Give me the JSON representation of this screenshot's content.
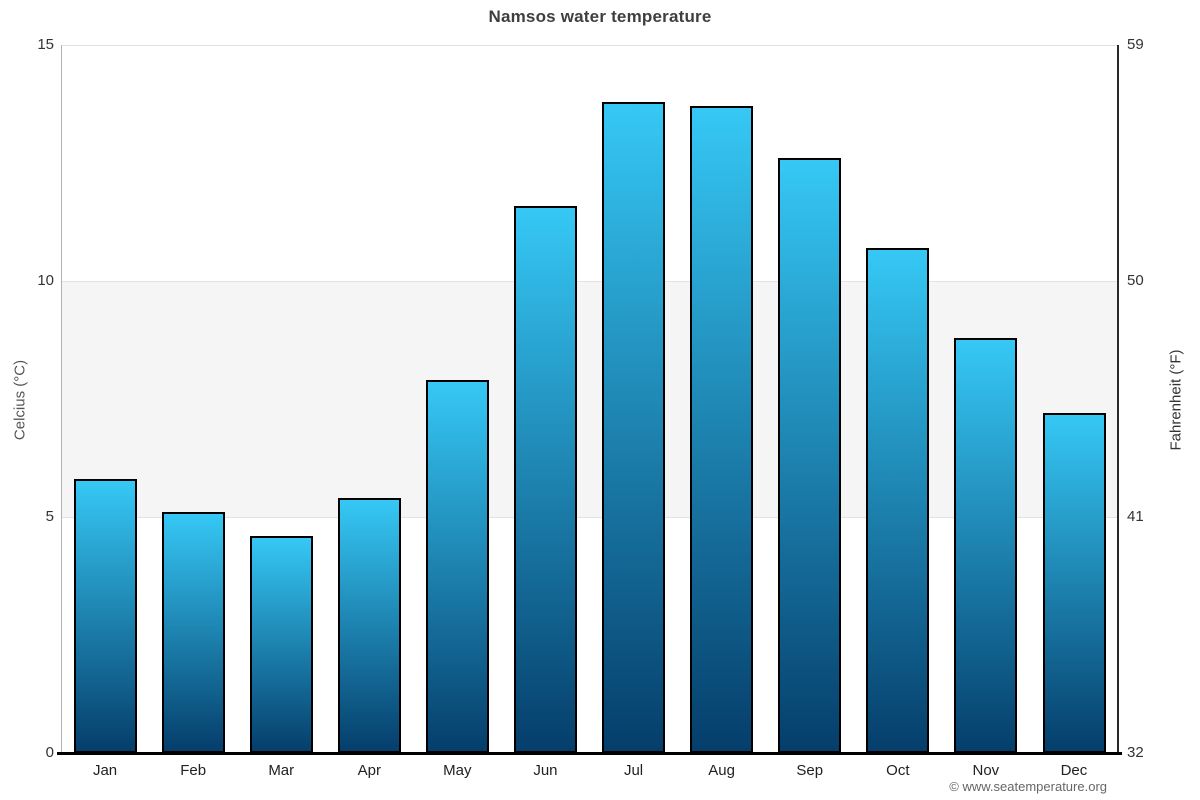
{
  "title": "Namsos water temperature",
  "credit": "© www.seatemperature.org",
  "chart_data": {
    "type": "bar",
    "title": "Namsos water temperature",
    "categories": [
      "Jan",
      "Feb",
      "Mar",
      "Apr",
      "May",
      "Jun",
      "Jul",
      "Aug",
      "Sep",
      "Oct",
      "Nov",
      "Dec"
    ],
    "values": [
      5.8,
      5.1,
      4.6,
      5.4,
      7.9,
      11.6,
      13.8,
      13.7,
      12.6,
      10.7,
      8.8,
      7.2
    ],
    "ylabel_left": "Celcius (°C)",
    "ylabel_right": "Fahrenheit (°F)",
    "yticks_left": [
      15,
      10,
      5,
      0
    ],
    "yticks_right": [
      59,
      50,
      41,
      32
    ],
    "ylim": [
      0,
      15
    ],
    "plot_band": {
      "from": 5,
      "to": 10,
      "color": "#f5f5f5"
    },
    "grid": true,
    "legend": "none",
    "colors": {
      "bar_top": "#36c8f5",
      "bar_bottom": "#053e6b",
      "bar_border": "#000000",
      "band": "#f5f5f5",
      "gridline": "#e2e2e2",
      "title_text": "#3f3f3f",
      "tick_text": "#333333",
      "credit_text": "#666666"
    }
  }
}
